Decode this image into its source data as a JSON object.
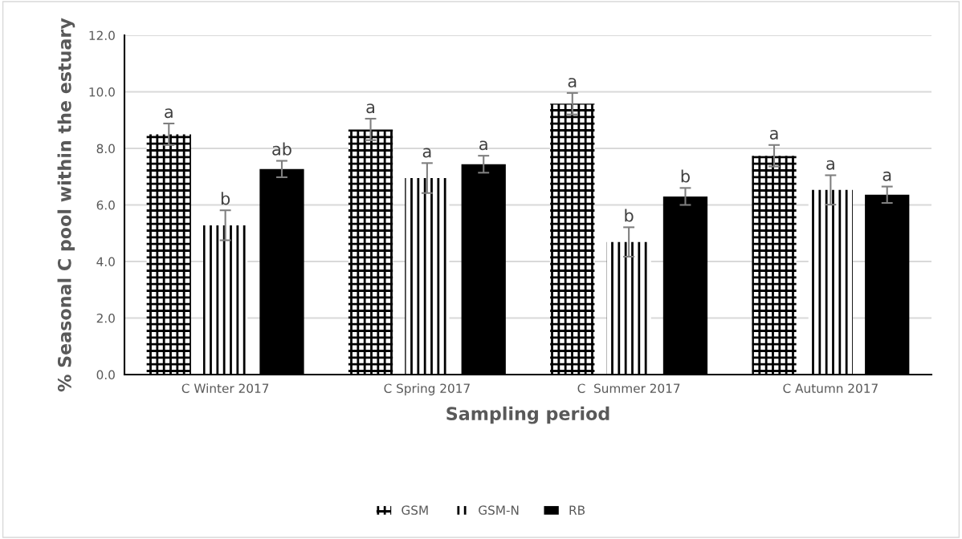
{
  "chart_data": {
    "type": "bar",
    "xlabel": "Sampling period",
    "ylabel": "% Seasonal C pool within the estuary",
    "categories": [
      "C Winter 2017",
      "C Spring 2017",
      "C  Summer 2017",
      "C Autumn 2017"
    ],
    "series": [
      {
        "name": "GSM",
        "color": "#000000",
        "values": [
          8.5,
          8.67,
          9.58,
          7.74
        ],
        "errors": [
          0.38,
          0.38,
          0.38,
          0.38
        ],
        "value_labels": [
          "a",
          "a",
          "a",
          "a"
        ]
      },
      {
        "name": "GSM-N",
        "color": "#000000",
        "values": [
          5.28,
          6.95,
          4.69,
          6.53
        ],
        "errors": [
          0.53,
          0.53,
          0.52,
          0.52
        ],
        "value_labels": [
          "b",
          "a",
          "b",
          "a"
        ]
      },
      {
        "name": "RB",
        "color": "#000000",
        "values": [
          7.27,
          7.44,
          6.3,
          6.36
        ],
        "errors": [
          0.29,
          0.3,
          0.3,
          0.29
        ],
        "value_labels": [
          "ab",
          "a",
          "b",
          "a"
        ]
      }
    ],
    "ylim": [
      0,
      12
    ],
    "yticks": [
      {
        "value": 0,
        "label": "0.0"
      },
      {
        "value": 2,
        "label": "2.0"
      },
      {
        "value": 4,
        "label": "4.0"
      },
      {
        "value": 6,
        "label": "6.0"
      },
      {
        "value": 8,
        "label": "8.0"
      },
      {
        "value": 10,
        "label": "10.0"
      },
      {
        "value": 12,
        "label": "12.0"
      }
    ],
    "grid": "y",
    "legend": "bottom"
  }
}
